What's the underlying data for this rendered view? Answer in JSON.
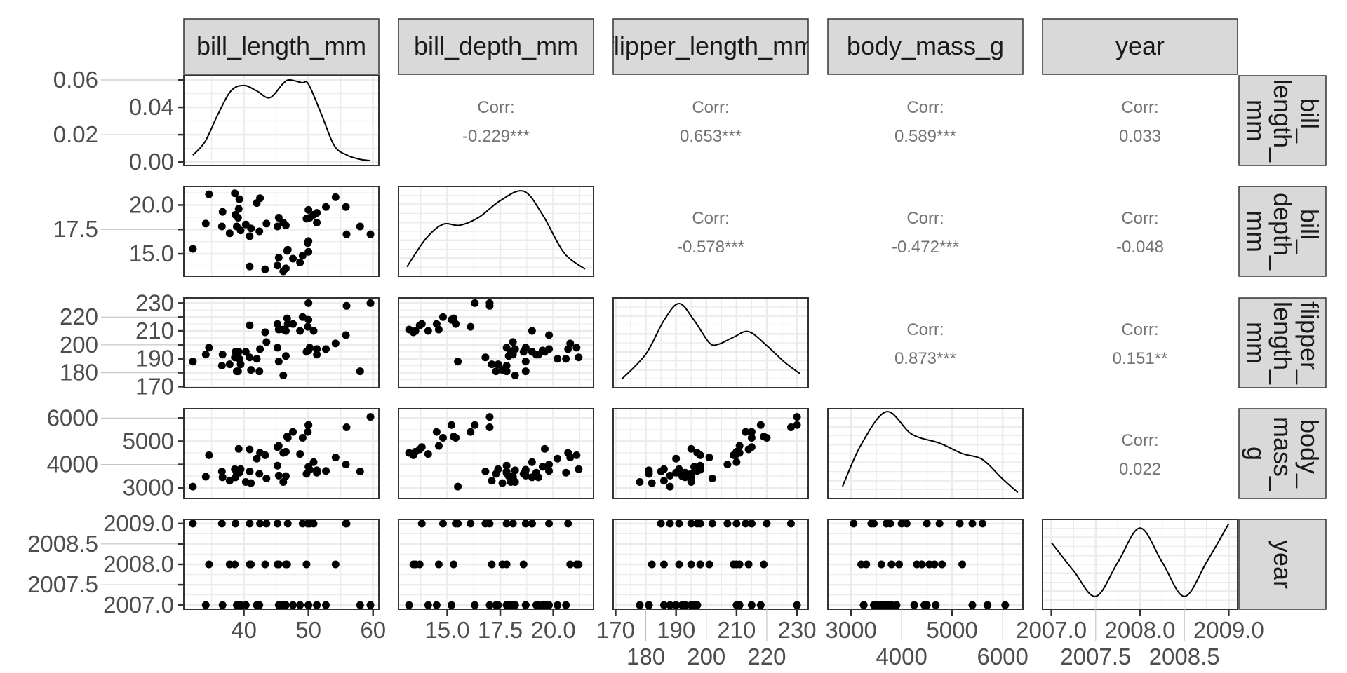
{
  "chart_data": {
    "type": "scatter-matrix",
    "variables": [
      "bill_length_mm",
      "bill_depth_mm",
      "flipper_length_mm",
      "body_mass_g",
      "year"
    ],
    "ranges": {
      "bill_length_mm": [
        30.7,
        60.9
      ],
      "bill_depth_mm": [
        12.7,
        21.9
      ],
      "flipper_length_mm": [
        169.2,
        233.7
      ],
      "body_mass_g": [
        2540,
        6400
      ],
      "year": [
        2006.9,
        2009.1
      ]
    },
    "ticks": {
      "bill_length_mm": [
        "40",
        "50",
        "60"
      ],
      "bill_depth_mm": [
        "15.0",
        "17.5",
        "20.0"
      ],
      "flipper_length_mm": [
        "170",
        "180",
        "190",
        "200",
        "210",
        "220",
        "230"
      ],
      "body_mass_g": [
        "3000",
        "4000",
        "5000",
        "6000"
      ],
      "year": [
        "2007.0",
        "2007.5",
        "2008.0",
        "2008.5",
        "2009.0"
      ]
    },
    "density_axis": {
      "ticks": [
        "0.00",
        "0.02",
        "0.04",
        "0.06"
      ],
      "ylim": [
        -0.0025,
        0.0631
      ]
    },
    "correlations": [
      {
        "row": 0,
        "col": 1,
        "label": "Corr:",
        "value": "-0.229***"
      },
      {
        "row": 0,
        "col": 2,
        "label": "Corr:",
        "value": "0.653***"
      },
      {
        "row": 0,
        "col": 3,
        "label": "Corr:",
        "value": "0.589***"
      },
      {
        "row": 0,
        "col": 4,
        "label": "Corr:",
        "value": "0.033"
      },
      {
        "row": 1,
        "col": 2,
        "label": "Corr:",
        "value": "-0.578***"
      },
      {
        "row": 1,
        "col": 3,
        "label": "Corr:",
        "value": "-0.472***"
      },
      {
        "row": 1,
        "col": 4,
        "label": "Corr:",
        "value": "-0.048"
      },
      {
        "row": 2,
        "col": 3,
        "label": "Corr:",
        "value": "0.873***"
      },
      {
        "row": 2,
        "col": 4,
        "label": "Corr:",
        "value": "0.151**"
      },
      {
        "row": 3,
        "col": 4,
        "label": "Corr:",
        "value": "0.022"
      }
    ],
    "densities": {
      "bill_length_mm": {
        "x": [
          32.1,
          34,
          36,
          38,
          40,
          42,
          44,
          46,
          47,
          49,
          50,
          52,
          54,
          56,
          58,
          59.6
        ],
        "y": [
          0.005,
          0.015,
          0.035,
          0.052,
          0.056,
          0.052,
          0.047,
          0.057,
          0.06,
          0.058,
          0.057,
          0.035,
          0.012,
          0.005,
          0.002,
          0.001
        ],
        "ylim": [
          -0.0025,
          0.0631
        ]
      },
      "bill_depth_mm": {
        "x": [
          13.1,
          14,
          14.8,
          15.6,
          16.5,
          17.5,
          18.6,
          19.5,
          20.5,
          21.5
        ],
        "y": [
          0.02,
          0.08,
          0.11,
          0.108,
          0.125,
          0.16,
          0.18,
          0.13,
          0.05,
          0.015
        ],
        "ylim": [
          0,
          0.19
        ]
      },
      "flipper_length_mm": {
        "x": [
          172,
          180,
          186,
          191,
          196,
          201,
          204,
          209,
          214,
          220,
          226,
          231
        ],
        "y": [
          0.003,
          0.012,
          0.024,
          0.03,
          0.024,
          0.016,
          0.0155,
          0.018,
          0.02,
          0.015,
          0.009,
          0.005
        ],
        "ylim": [
          0,
          0.032
        ]
      },
      "body_mass_g": {
        "x": [
          2830,
          3200,
          3700,
          4200,
          4750,
          5200,
          5600,
          6000,
          6300
        ],
        "y": [
          8e-05,
          0.00036,
          0.00058,
          0.00043,
          0.00037,
          0.0003,
          0.00026,
          0.00013,
          4e-05
        ],
        "ylim": [
          0,
          0.0006
        ]
      },
      "year": {
        "x": [
          2007,
          2007.25,
          2007.5,
          2007.75,
          2008,
          2008.25,
          2008.5,
          2008.75,
          2009
        ],
        "y": [
          0.78,
          0.45,
          0.15,
          0.55,
          0.95,
          0.55,
          0.15,
          0.55,
          1.0
        ],
        "ylim": [
          0,
          1.05
        ]
      }
    },
    "points": [
      [
        39.1,
        18.7,
        181,
        3750,
        2007
      ],
      [
        39.5,
        17.4,
        186,
        3800,
        2007
      ],
      [
        40.3,
        18,
        195,
        3250,
        2007
      ],
      [
        36.7,
        19.3,
        193,
        3450,
        2007
      ],
      [
        39.3,
        20.6,
        190,
        3650,
        2007
      ],
      [
        38.9,
        17.8,
        181,
        3625,
        2007
      ],
      [
        39.2,
        19.6,
        195,
        4675,
        2007
      ],
      [
        34.1,
        18.1,
        193,
        3475,
        2007
      ],
      [
        42,
        20.2,
        190,
        4250,
        2007
      ],
      [
        37.8,
        17.1,
        186,
        3300,
        2008
      ],
      [
        41.1,
        17.6,
        182,
        3200,
        2008
      ],
      [
        38.6,
        21.2,
        191,
        3800,
        2008
      ],
      [
        34.6,
        21.1,
        198,
        4400,
        2008
      ],
      [
        36.6,
        17.8,
        185,
        3700,
        2009
      ],
      [
        38.7,
        19,
        195,
        3450,
        2009
      ],
      [
        42.5,
        20.7,
        197,
        4500,
        2009
      ],
      [
        32.1,
        15.5,
        188,
        3050,
        2009
      ],
      [
        40.9,
        16.8,
        191,
        3700,
        2009
      ],
      [
        46.1,
        13.2,
        211,
        4500,
        2007
      ],
      [
        50,
        16.3,
        230,
        5700,
        2007
      ],
      [
        48.7,
        14.1,
        210,
        4450,
        2007
      ],
      [
        50,
        15.2,
        218,
        5700,
        2007
      ],
      [
        47.6,
        14.5,
        215,
        5400,
        2007
      ],
      [
        46.5,
        13.5,
        210,
        4550,
        2008
      ],
      [
        45.4,
        14.6,
        211,
        4800,
        2008
      ],
      [
        46.7,
        15.3,
        219,
        5200,
        2008
      ],
      [
        43.3,
        13.4,
        209,
        4400,
        2008
      ],
      [
        46.8,
        15.4,
        215,
        5150,
        2009
      ],
      [
        49.1,
        14.8,
        220,
        5150,
        2009
      ],
      [
        59.6,
        17,
        230,
        6050,
        2007
      ],
      [
        45.2,
        13.8,
        215,
        4750,
        2009
      ],
      [
        49.9,
        16.1,
        213,
        5400,
        2009
      ],
      [
        40.9,
        13.7,
        214,
        4650,
        2008
      ],
      [
        55.9,
        17,
        228,
        5600,
        2009
      ],
      [
        46.5,
        17.9,
        192,
        3500,
        2007
      ],
      [
        50,
        19.5,
        196,
        3900,
        2007
      ],
      [
        51.3,
        19.2,
        193,
        3650,
        2007
      ],
      [
        45.4,
        18.7,
        188,
        3525,
        2007
      ],
      [
        52.7,
        19.8,
        197,
        3725,
        2007
      ],
      [
        45.2,
        17.8,
        198,
        3950,
        2008
      ],
      [
        46.1,
        18.2,
        178,
        3250,
        2007
      ],
      [
        51.3,
        18.2,
        197,
        3750,
        2007
      ],
      [
        58,
        17.8,
        181,
        3700,
        2007
      ],
      [
        49.7,
        18.6,
        195,
        3600,
        2008
      ],
      [
        55.8,
        19.8,
        207,
        4000,
        2009
      ],
      [
        43.5,
        18.1,
        202,
        3400,
        2009
      ],
      [
        50.8,
        19,
        210,
        4100,
        2009
      ],
      [
        50.2,
        18.7,
        198,
        3775,
        2009
      ],
      [
        42.4,
        17.3,
        181,
        3600,
        2007
      ],
      [
        54.2,
        20.8,
        201,
        4300,
        2008
      ]
    ]
  }
}
